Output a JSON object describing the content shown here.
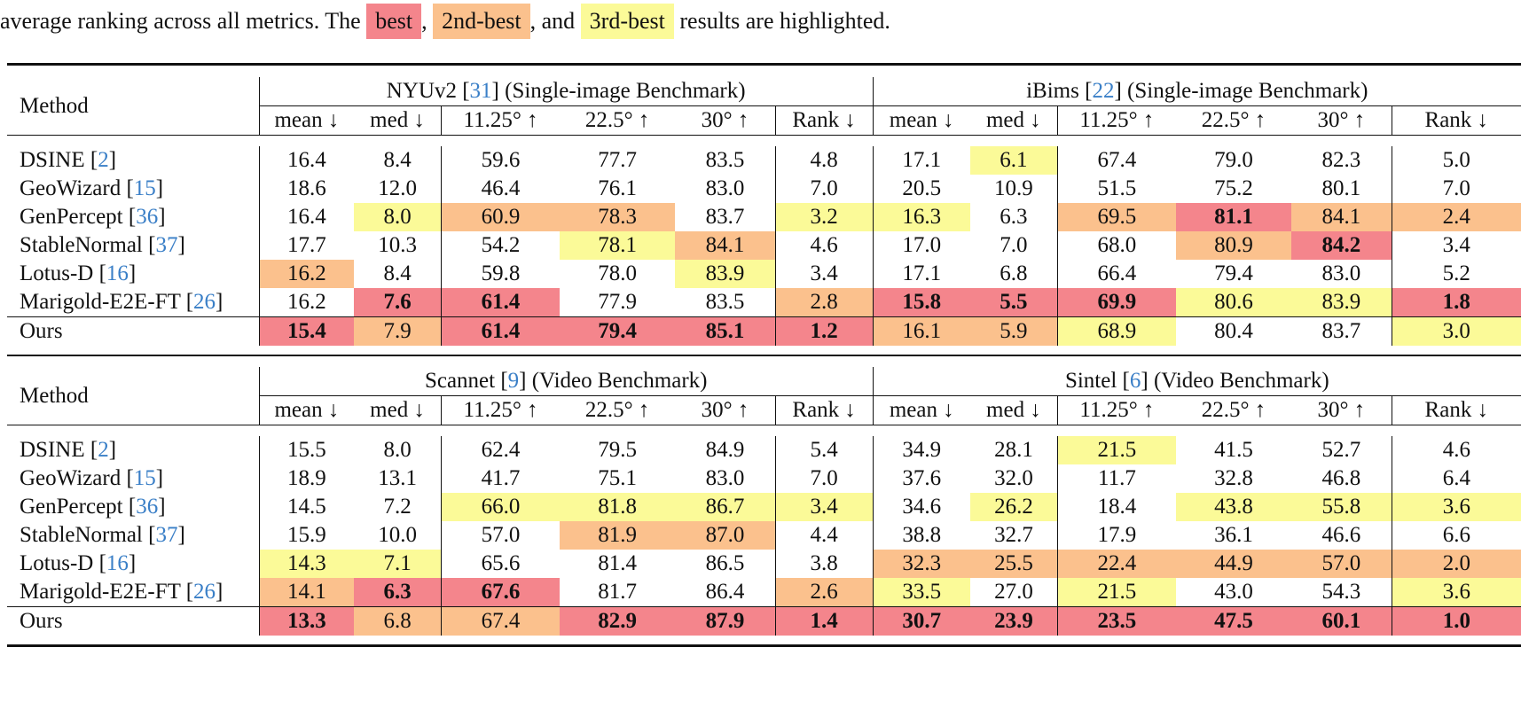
{
  "caption": {
    "prefix": "average ranking across all metrics. The",
    "best": "best",
    "comma1": ",",
    "second": "2nd-best",
    "and": ", and",
    "third": "3rd-best",
    "suffix": "results are highlighted."
  },
  "colors": {
    "best": "#f4858c",
    "second": "#fbc18d",
    "third": "#fbfa98",
    "citation": "#3a7fc7"
  },
  "tables": [
    {
      "method_header": "Method",
      "groups": [
        {
          "name": "NYUv2",
          "cite": "31",
          "desc": "(Single-image Benchmark)"
        },
        {
          "name": "iBims",
          "cite": "22",
          "desc": "(Single-image Benchmark)"
        }
      ],
      "columns": [
        "mean ↓",
        "med ↓",
        "11.25° ↑",
        "22.5° ↑",
        "30° ↑",
        "Rank ↓",
        "mean ↓",
        "med ↓",
        "11.25° ↑",
        "22.5° ↑",
        "30° ↑",
        "Rank ↓"
      ],
      "rows": [
        {
          "name": "DSINE",
          "cite": "2",
          "values": [
            "16.4",
            "8.4",
            "59.6",
            "77.7",
            "83.5",
            "4.8",
            "17.1",
            "6.1",
            "67.4",
            "79.0",
            "82.3",
            "5.0"
          ],
          "ranks": [
            0,
            0,
            0,
            0,
            0,
            0,
            0,
            3,
            0,
            0,
            0,
            0
          ]
        },
        {
          "name": "GeoWizard",
          "cite": "15",
          "values": [
            "18.6",
            "12.0",
            "46.4",
            "76.1",
            "83.0",
            "7.0",
            "20.5",
            "10.9",
            "51.5",
            "75.2",
            "80.1",
            "7.0"
          ],
          "ranks": [
            0,
            0,
            0,
            0,
            0,
            0,
            0,
            0,
            0,
            0,
            0,
            0
          ]
        },
        {
          "name": "GenPercept",
          "cite": "36",
          "values": [
            "16.4",
            "8.0",
            "60.9",
            "78.3",
            "83.7",
            "3.2",
            "16.3",
            "6.3",
            "69.5",
            "81.1",
            "84.1",
            "2.4"
          ],
          "ranks": [
            0,
            3,
            2,
            2,
            0,
            3,
            3,
            0,
            2,
            1,
            2,
            2
          ]
        },
        {
          "name": "StableNormal",
          "cite": "37",
          "values": [
            "17.7",
            "10.3",
            "54.2",
            "78.1",
            "84.1",
            "4.6",
            "17.0",
            "7.0",
            "68.0",
            "80.9",
            "84.2",
            "3.4"
          ],
          "ranks": [
            0,
            0,
            0,
            3,
            2,
            0,
            0,
            0,
            0,
            2,
            1,
            0
          ]
        },
        {
          "name": "Lotus-D",
          "cite": "16",
          "values": [
            "16.2",
            "8.4",
            "59.8",
            "78.0",
            "83.9",
            "3.4",
            "17.1",
            "6.8",
            "66.4",
            "79.4",
            "83.0",
            "5.2"
          ],
          "ranks": [
            2,
            0,
            0,
            0,
            3,
            0,
            0,
            0,
            0,
            0,
            0,
            0
          ]
        },
        {
          "name": "Marigold-E2E-FT",
          "cite": "26",
          "values": [
            "16.2",
            "7.6",
            "61.4",
            "77.9",
            "83.5",
            "2.8",
            "15.8",
            "5.5",
            "69.9",
            "80.6",
            "83.9",
            "1.8"
          ],
          "ranks": [
            0,
            1,
            1,
            0,
            0,
            2,
            1,
            1,
            1,
            3,
            3,
            1
          ]
        }
      ],
      "ours": {
        "name": "Ours",
        "values": [
          "15.4",
          "7.9",
          "61.4",
          "79.4",
          "85.1",
          "1.2",
          "16.1",
          "5.9",
          "68.9",
          "80.4",
          "83.7",
          "3.0"
        ],
        "ranks": [
          1,
          2,
          1,
          1,
          1,
          1,
          2,
          2,
          3,
          0,
          0,
          3
        ]
      }
    },
    {
      "method_header": "Method",
      "groups": [
        {
          "name": "Scannet",
          "cite": "9",
          "desc": "(Video Benchmark)"
        },
        {
          "name": "Sintel",
          "cite": "6",
          "desc": "(Video Benchmark)"
        }
      ],
      "columns": [
        "mean ↓",
        "med ↓",
        "11.25° ↑",
        "22.5° ↑",
        "30° ↑",
        "Rank ↓",
        "mean ↓",
        "med ↓",
        "11.25° ↑",
        "22.5° ↑",
        "30° ↑",
        "Rank ↓"
      ],
      "rows": [
        {
          "name": "DSINE",
          "cite": "2",
          "values": [
            "15.5",
            "8.0",
            "62.4",
            "79.5",
            "84.9",
            "5.4",
            "34.9",
            "28.1",
            "21.5",
            "41.5",
            "52.7",
            "4.6"
          ],
          "ranks": [
            0,
            0,
            0,
            0,
            0,
            0,
            0,
            0,
            3,
            0,
            0,
            0
          ]
        },
        {
          "name": "GeoWizard",
          "cite": "15",
          "values": [
            "18.9",
            "13.1",
            "41.7",
            "75.1",
            "83.0",
            "7.0",
            "37.6",
            "32.0",
            "11.7",
            "32.8",
            "46.8",
            "6.4"
          ],
          "ranks": [
            0,
            0,
            0,
            0,
            0,
            0,
            0,
            0,
            0,
            0,
            0,
            0
          ]
        },
        {
          "name": "GenPercept",
          "cite": "36",
          "values": [
            "14.5",
            "7.2",
            "66.0",
            "81.8",
            "86.7",
            "3.4",
            "34.6",
            "26.2",
            "18.4",
            "43.8",
            "55.8",
            "3.6"
          ],
          "ranks": [
            0,
            0,
            3,
            3,
            3,
            3,
            0,
            3,
            0,
            3,
            3,
            3
          ]
        },
        {
          "name": "StableNormal",
          "cite": "37",
          "values": [
            "15.9",
            "10.0",
            "57.0",
            "81.9",
            "87.0",
            "4.4",
            "38.8",
            "32.7",
            "17.9",
            "36.1",
            "46.6",
            "6.6"
          ],
          "ranks": [
            0,
            0,
            0,
            2,
            2,
            0,
            0,
            0,
            0,
            0,
            0,
            0
          ]
        },
        {
          "name": "Lotus-D",
          "cite": "16",
          "values": [
            "14.3",
            "7.1",
            "65.6",
            "81.4",
            "86.5",
            "3.8",
            "32.3",
            "25.5",
            "22.4",
            "44.9",
            "57.0",
            "2.0"
          ],
          "ranks": [
            3,
            3,
            0,
            0,
            0,
            0,
            2,
            2,
            2,
            2,
            2,
            2
          ]
        },
        {
          "name": "Marigold-E2E-FT",
          "cite": "26",
          "values": [
            "14.1",
            "6.3",
            "67.6",
            "81.7",
            "86.4",
            "2.6",
            "33.5",
            "27.0",
            "21.5",
            "43.0",
            "54.3",
            "3.6"
          ],
          "ranks": [
            2,
            1,
            1,
            0,
            0,
            2,
            3,
            0,
            3,
            0,
            0,
            3
          ]
        }
      ],
      "ours": {
        "name": "Ours",
        "values": [
          "13.3",
          "6.8",
          "67.4",
          "82.9",
          "87.9",
          "1.4",
          "30.7",
          "23.9",
          "23.5",
          "47.5",
          "60.1",
          "1.0"
        ],
        "ranks": [
          1,
          2,
          2,
          1,
          1,
          1,
          1,
          1,
          1,
          1,
          1,
          1
        ]
      }
    }
  ]
}
